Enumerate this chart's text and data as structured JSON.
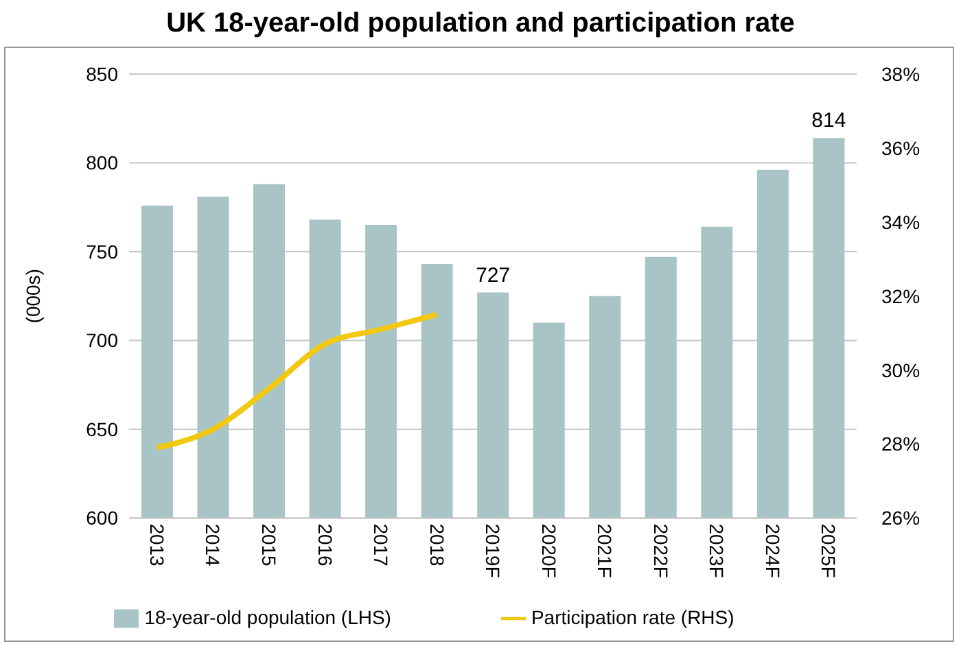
{
  "chart_data": {
    "type": "bar",
    "title": "UK 18-year-old population and participation rate",
    "ylabel": "(000s)",
    "categories": [
      "2013",
      "2014",
      "2015",
      "2016",
      "2017",
      "2018",
      "2019F",
      "2020F",
      "2021F",
      "2022F",
      "2023F",
      "2024F",
      "2025F"
    ],
    "series": [
      {
        "name": "18-year-old population (LHS)",
        "color": "#a9c4c6",
        "values": [
          776,
          781,
          788,
          768,
          765,
          743,
          727,
          710,
          725,
          747,
          764,
          796,
          814
        ],
        "value_labels": [
          null,
          null,
          null,
          null,
          null,
          null,
          "727",
          null,
          null,
          null,
          null,
          null,
          "814"
        ]
      },
      {
        "name": "Participation rate (RHS)",
        "type": "line",
        "axis": "y2",
        "color": "#f2c811",
        "line_style": "solid",
        "marker": "none",
        "values": [
          27.9,
          28.4,
          29.5,
          30.7,
          31.1,
          31.5,
          null,
          null,
          null,
          null,
          null,
          null,
          null
        ]
      }
    ],
    "ylim": [
      600,
      850
    ],
    "yticks": [
      600,
      650,
      700,
      750,
      800,
      850
    ],
    "y2lim": [
      26,
      38
    ],
    "y2ticks": [
      {
        "value": 26,
        "label": "26%"
      },
      {
        "value": 28,
        "label": "28%"
      },
      {
        "value": 30,
        "label": "30%"
      },
      {
        "value": 32,
        "label": "32%"
      },
      {
        "value": 34,
        "label": "34%"
      },
      {
        "value": 36,
        "label": "36%"
      },
      {
        "value": 38,
        "label": "38%"
      }
    ],
    "grid": "y",
    "legend": "bottom"
  }
}
